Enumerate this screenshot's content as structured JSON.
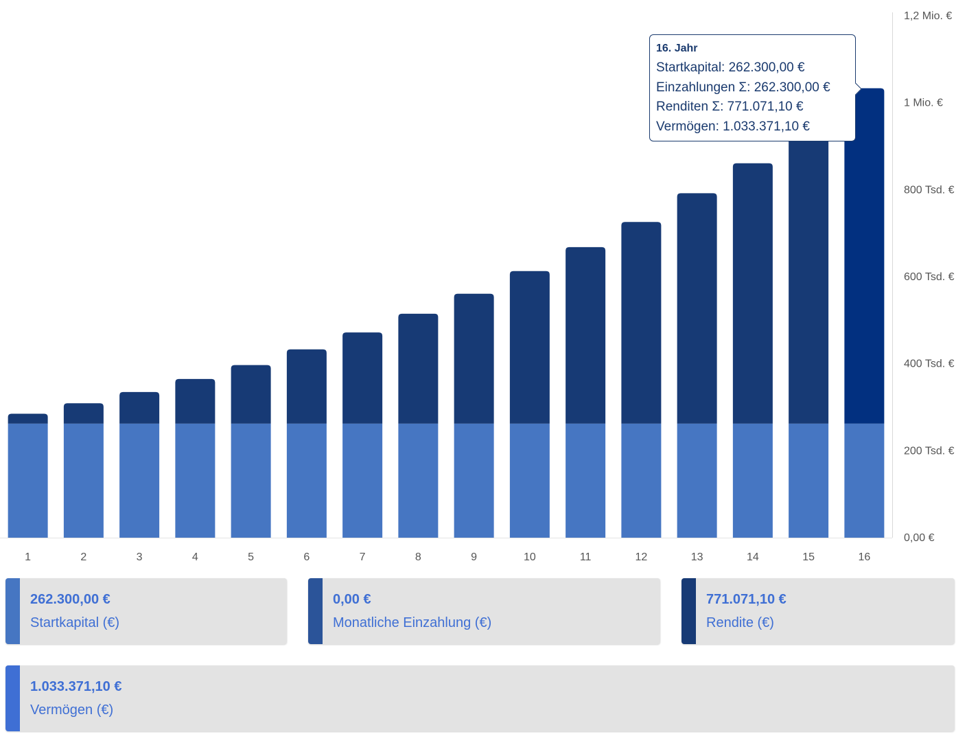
{
  "chart_data": {
    "type": "bar",
    "stacked": true,
    "categories": [
      "1",
      "2",
      "3",
      "4",
      "5",
      "6",
      "7",
      "8",
      "9",
      "10",
      "11",
      "12",
      "13",
      "14",
      "15",
      "16"
    ],
    "series": [
      {
        "name": "Startkapital",
        "color": "#4676c2",
        "values": [
          262300,
          262300,
          262300,
          262300,
          262300,
          262300,
          262300,
          262300,
          262300,
          262300,
          262300,
          262300,
          262300,
          262300,
          262300,
          262300
        ]
      },
      {
        "name": "Rendite",
        "color": "#173a75",
        "highlight_color": "#023080",
        "values": [
          22700,
          46700,
          72700,
          102700,
          134700,
          170700,
          209700,
          252700,
          298700,
          350700,
          405700,
          463700,
          529700,
          598700,
          680700,
          771071.1
        ]
      }
    ],
    "ylim": [
      0,
      1200000
    ],
    "yticks": [
      {
        "value": 0,
        "label": "0,00 €"
      },
      {
        "value": 200000,
        "label": "200 Tsd. €"
      },
      {
        "value": 400000,
        "label": "400 Tsd. €"
      },
      {
        "value": 600000,
        "label": "600 Tsd. €"
      },
      {
        "value": 800000,
        "label": "800 Tsd. €"
      },
      {
        "value": 1000000,
        "label": "1 Mio. €"
      },
      {
        "value": 1200000,
        "label": "1,2 Mio. €"
      }
    ],
    "axis_position": "right",
    "grid": false,
    "highlighted_index": 15
  },
  "tooltip": {
    "title": "16. Jahr",
    "lines": [
      "Startkapital: 262.300,00 €",
      "Einzahlungen Σ: 262.300,00 €",
      "Renditen Σ: 771.071,10 €",
      "Vermögen: 1.033.371,10 €"
    ]
  },
  "summary": [
    {
      "value": "262.300,00 €",
      "label": "Startkapital (€)",
      "color": "#4676c2"
    },
    {
      "value": "0,00 €",
      "label": "Monatliche Einzahlung (€)",
      "color": "#2b5499"
    },
    {
      "value": "771.071,10 €",
      "label": "Rendite (€)",
      "color": "#173a75"
    },
    {
      "value": "1.033.371,10 €",
      "label": "Vermögen (€)",
      "color": "#3f6fd4"
    }
  ]
}
